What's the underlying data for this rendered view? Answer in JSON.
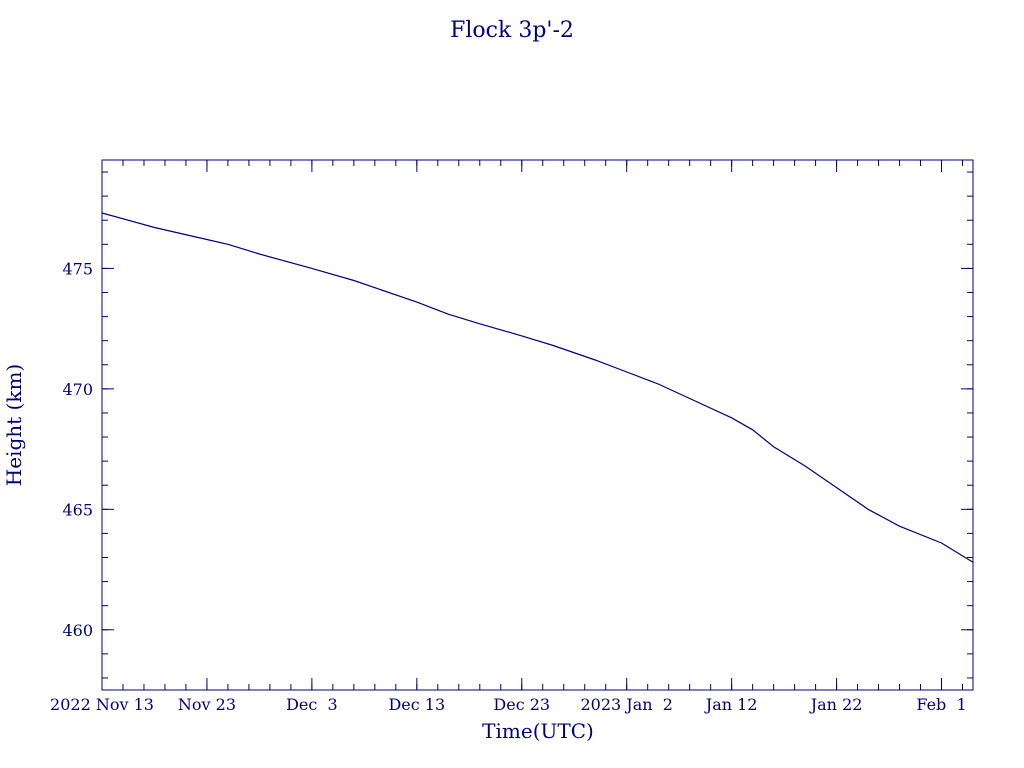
{
  "chart_data": {
    "type": "line",
    "title": "Flock 3p'-2",
    "xlabel": "Time(UTC)",
    "ylabel": "Height (km)",
    "x_range": [
      "2022-11-13",
      "2023-02-04"
    ],
    "ylim": [
      457.5,
      479.5
    ],
    "grid": false,
    "color": "#00007f",
    "x_ticks": [
      {
        "date": "2022-11-13",
        "label": "2022 Nov 13"
      },
      {
        "date": "2022-11-23",
        "label": "Nov 23"
      },
      {
        "date": "2022-12-03",
        "label": "Dec  3"
      },
      {
        "date": "2022-12-13",
        "label": "Dec 13"
      },
      {
        "date": "2022-12-23",
        "label": "Dec 23"
      },
      {
        "date": "2023-01-02",
        "label": "2023 Jan  2"
      },
      {
        "date": "2023-01-12",
        "label": "Jan 12"
      },
      {
        "date": "2023-01-22",
        "label": "Jan 22"
      },
      {
        "date": "2023-02-01",
        "label": "Feb  1"
      }
    ],
    "y_ticks": [
      460,
      465,
      470,
      475
    ],
    "series": [
      {
        "x": [
          "2022-11-13",
          "2022-11-18",
          "2022-11-23",
          "2022-11-25",
          "2022-11-28",
          "2022-12-03",
          "2022-12-07",
          "2022-12-13",
          "2022-12-16",
          "2022-12-19",
          "2022-12-23",
          "2022-12-26",
          "2022-12-30",
          "2023-01-02",
          "2023-01-05",
          "2023-01-08",
          "2023-01-12",
          "2023-01-14",
          "2023-01-16",
          "2023-01-19",
          "2023-01-22",
          "2023-01-25",
          "2023-01-28",
          "2023-02-01",
          "2023-02-04"
        ],
        "y": [
          477.3,
          476.7,
          476.2,
          476.0,
          475.6,
          475.0,
          474.5,
          473.6,
          473.1,
          472.7,
          472.2,
          471.8,
          471.2,
          470.7,
          470.2,
          469.6,
          468.8,
          468.3,
          467.6,
          466.8,
          465.9,
          465.0,
          464.3,
          463.6,
          462.8
        ]
      }
    ]
  }
}
